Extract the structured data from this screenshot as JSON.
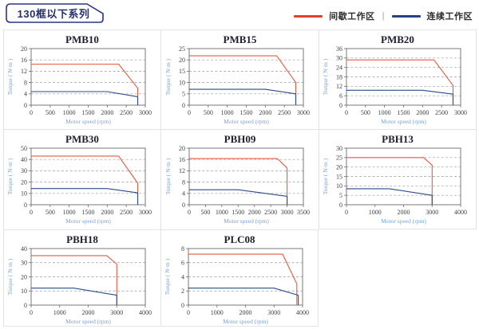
{
  "header": {
    "title": "130框以下系列"
  },
  "legend": {
    "separator": "|",
    "items": [
      {
        "label": "间歇工作区",
        "color": "#e2401f"
      },
      {
        "label": "连续工作区",
        "color": "#24418c"
      }
    ]
  },
  "colors": {
    "intermittent_line": "#e75a3e",
    "continuous_line": "#2c4a8c",
    "gridline": "#9c9c9c",
    "plot_border": "#6b6b6b",
    "tick_text": "#3f3f3f",
    "axis_text": "#7ba3d6",
    "cell_border": "#e3e3e3",
    "badge_border": "#2a3580"
  },
  "axis_labels": {
    "x": "Motor speed (rpm)",
    "y": "Torque ( N·m )"
  },
  "chart_data": [
    {
      "type": "line",
      "title": "PMB10",
      "xlabel": "Motor speed (rpm)",
      "ylabel": "Torque ( N·m )",
      "xlim": [
        0,
        3000
      ],
      "ylim": [
        0,
        20
      ],
      "xtick_step": 500,
      "ytick_step": 4,
      "grid": "horizontal-dashed",
      "legend_position": "none",
      "series": [
        {
          "name": "间歇工作区",
          "color_key": "intermittent_line",
          "points": [
            [
              0,
              14.5
            ],
            [
              2300,
              14.5
            ],
            [
              2800,
              6
            ],
            [
              2800,
              0
            ]
          ]
        },
        {
          "name": "连续工作区",
          "color_key": "continuous_line",
          "points": [
            [
              0,
              4.8
            ],
            [
              2000,
              4.8
            ],
            [
              2800,
              3
            ],
            [
              2800,
              0
            ]
          ]
        }
      ]
    },
    {
      "type": "line",
      "title": "PMB15",
      "xlabel": "Motor speed (rpm)",
      "ylabel": "Torque ( N·m )",
      "xlim": [
        0,
        3000
      ],
      "ylim": [
        0,
        25
      ],
      "xtick_step": 500,
      "ytick_step": 5,
      "grid": "horizontal-dashed",
      "legend_position": "none",
      "series": [
        {
          "name": "间歇工作区",
          "color_key": "intermittent_line",
          "points": [
            [
              0,
              21.8
            ],
            [
              2300,
              21.8
            ],
            [
              2800,
              10
            ],
            [
              2800,
              0
            ]
          ]
        },
        {
          "name": "连续工作区",
          "color_key": "continuous_line",
          "points": [
            [
              0,
              7
            ],
            [
              2000,
              7
            ],
            [
              2800,
              5
            ],
            [
              2800,
              0
            ]
          ]
        }
      ]
    },
    {
      "type": "line",
      "title": "PMB20",
      "xlabel": "Motor speed (rpm)",
      "ylabel": "Torque ( N·m )",
      "xlim": [
        0,
        3000
      ],
      "ylim": [
        0,
        36
      ],
      "xtick_step": 500,
      "ytick_step": 6,
      "grid": "horizontal-dashed",
      "legend_position": "none",
      "series": [
        {
          "name": "间歇工作区",
          "color_key": "intermittent_line",
          "points": [
            [
              0,
              28.8
            ],
            [
              2300,
              28.8
            ],
            [
              2800,
              12.5
            ],
            [
              2800,
              0
            ]
          ]
        },
        {
          "name": "连续工作区",
          "color_key": "continuous_line",
          "points": [
            [
              0,
              9.5
            ],
            [
              2000,
              9.5
            ],
            [
              2800,
              7
            ],
            [
              2800,
              0
            ]
          ]
        }
      ]
    },
    {
      "type": "line",
      "title": "PMB30",
      "xlabel": "Motor speed (rpm)",
      "ylabel": "Torque ( N·m )",
      "xlim": [
        0,
        3000
      ],
      "ylim": [
        0,
        50
      ],
      "xtick_step": 500,
      "ytick_step": 10,
      "grid": "horizontal-dashed",
      "legend_position": "none",
      "series": [
        {
          "name": "间歇工作区",
          "color_key": "intermittent_line",
          "points": [
            [
              0,
              43
            ],
            [
              2300,
              43
            ],
            [
              2800,
              19
            ],
            [
              2800,
              0
            ]
          ]
        },
        {
          "name": "连续工作区",
          "color_key": "continuous_line",
          "points": [
            [
              0,
              14.3
            ],
            [
              2000,
              14.3
            ],
            [
              2800,
              10.5
            ],
            [
              2800,
              0
            ]
          ]
        }
      ]
    },
    {
      "type": "line",
      "title": "PBH09",
      "xlabel": "Motor speed (rpm)",
      "ylabel": "Torque ( N·m )",
      "xlim": [
        0,
        3500
      ],
      "ylim": [
        0,
        20
      ],
      "xtick_step": 500,
      "ytick_step": 4,
      "grid": "horizontal-dashed",
      "legend_position": "none",
      "series": [
        {
          "name": "间歇工作区",
          "color_key": "intermittent_line",
          "points": [
            [
              0,
              16.3
            ],
            [
              2700,
              16.3
            ],
            [
              3000,
              13
            ],
            [
              3000,
              0
            ]
          ]
        },
        {
          "name": "连续工作区",
          "color_key": "continuous_line",
          "points": [
            [
              0,
              5.3
            ],
            [
              1500,
              5.3
            ],
            [
              3000,
              3
            ],
            [
              3000,
              0
            ]
          ]
        }
      ]
    },
    {
      "type": "line",
      "title": "PBH13",
      "xlabel": "Motor speed (rpm)",
      "ylabel": "Torque ( N·m )",
      "xlim": [
        0,
        4000
      ],
      "ylim": [
        0,
        30
      ],
      "xtick_step": 1000,
      "ytick_step": 5,
      "grid": "horizontal-dashed",
      "legend_position": "none",
      "series": [
        {
          "name": "间歇工作区",
          "color_key": "intermittent_line",
          "points": [
            [
              0,
              25
            ],
            [
              2700,
              25
            ],
            [
              3000,
              21
            ],
            [
              3000,
              0
            ]
          ]
        },
        {
          "name": "连续工作区",
          "color_key": "continuous_line",
          "points": [
            [
              0,
              8.5
            ],
            [
              1500,
              8.5
            ],
            [
              3000,
              5
            ],
            [
              3000,
              0
            ]
          ]
        }
      ]
    },
    {
      "type": "line",
      "title": "PBH18",
      "xlabel": "Motor speed (rpm)",
      "ylabel": "Torque ( N·m )",
      "xlim": [
        0,
        4000
      ],
      "ylim": [
        0,
        40
      ],
      "xtick_step": 1000,
      "ytick_step": 10,
      "grid": "horizontal-dashed",
      "legend_position": "none",
      "series": [
        {
          "name": "间歇工作区",
          "color_key": "intermittent_line",
          "points": [
            [
              0,
              35
            ],
            [
              2650,
              35
            ],
            [
              3000,
              29
            ],
            [
              3000,
              0
            ]
          ]
        },
        {
          "name": "连续工作区",
          "color_key": "continuous_line",
          "points": [
            [
              0,
              12
            ],
            [
              1500,
              12
            ],
            [
              3000,
              7
            ],
            [
              3000,
              0
            ]
          ]
        }
      ]
    },
    {
      "type": "line",
      "title": "PLC08",
      "xlabel": "Motor speed (rpm)",
      "ylabel": "Torque ( N·m )",
      "xlim": [
        0,
        4000
      ],
      "ylim": [
        0,
        8
      ],
      "xtick_step": 1000,
      "ytick_step": 2,
      "grid": "horizontal-dashed",
      "legend_position": "none",
      "series": [
        {
          "name": "间歇工作区",
          "color_key": "intermittent_line",
          "points": [
            [
              0,
              7.2
            ],
            [
              3300,
              7.2
            ],
            [
              3800,
              3
            ],
            [
              3800,
              0
            ]
          ]
        },
        {
          "name": "连续工作区",
          "color_key": "continuous_line",
          "points": [
            [
              0,
              2.4
            ],
            [
              3000,
              2.4
            ],
            [
              3850,
              1.4
            ],
            [
              3850,
              0
            ]
          ]
        }
      ]
    }
  ]
}
